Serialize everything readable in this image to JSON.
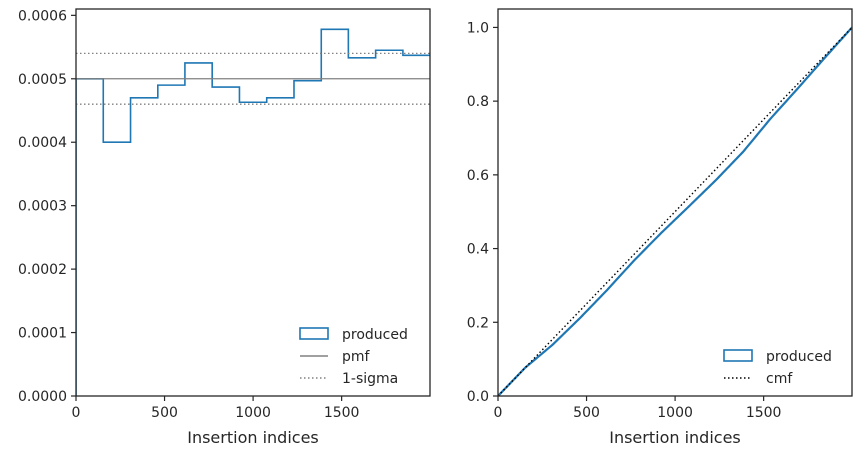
{
  "chart_data": [
    {
      "type": "line",
      "xlabel": "Insertion indices",
      "ylabel": "",
      "xlim": [
        0,
        1999
      ],
      "ylim": [
        0,
        0.00061
      ],
      "xticks": [
        0,
        500,
        1000,
        1500
      ],
      "xtick_labels": [
        "0",
        "500",
        "1000",
        "1500"
      ],
      "yticks": [
        0,
        0.0001,
        0.0002,
        0.0003,
        0.0004,
        0.0005,
        0.0006
      ],
      "ytick_labels": [
        "0.0000",
        "0.0001",
        "0.0002",
        "0.0003",
        "0.0004",
        "0.0005",
        "0.0006"
      ],
      "legend_position": "bottom-right",
      "series": [
        {
          "name": "produced",
          "style": "step",
          "color": "#1f77b4",
          "bin_edges": [
            0,
            154,
            308,
            462,
            615,
            769,
            923,
            1077,
            1231,
            1385,
            1538,
            1692,
            1846,
            1999
          ],
          "values": [
            0.0005,
            0.0004,
            0.00047,
            0.00049,
            0.000525,
            0.000487,
            0.000463,
            0.00047,
            0.000497,
            0.000578,
            0.000533,
            0.000545,
            0.000537
          ]
        },
        {
          "name": "pmf",
          "style": "solid",
          "color": "#808080",
          "y": 0.0005
        },
        {
          "name": "1-sigma",
          "style": "dotted",
          "color": "#808080",
          "y": [
            0.00046,
            0.00054
          ]
        }
      ]
    },
    {
      "type": "line",
      "xlabel": "Insertion indices",
      "ylabel": "",
      "xlim": [
        0,
        1999
      ],
      "ylim": [
        0,
        1.05
      ],
      "xticks": [
        0,
        500,
        1000,
        1500
      ],
      "xtick_labels": [
        "0",
        "500",
        "1000",
        "1500"
      ],
      "yticks": [
        0,
        0.2,
        0.4,
        0.6,
        0.8,
        1.0
      ],
      "ytick_labels": [
        "0.0",
        "0.2",
        "0.4",
        "0.6",
        "0.8",
        "1.0"
      ],
      "legend_position": "bottom-right",
      "series": [
        {
          "name": "produced",
          "style": "step",
          "color": "#1f77b4",
          "x": [
            0,
            154,
            308,
            462,
            615,
            769,
            923,
            1077,
            1231,
            1385,
            1538,
            1692,
            1846,
            1999
          ],
          "y": [
            0,
            0.077,
            0.139,
            0.211,
            0.287,
            0.368,
            0.443,
            0.514,
            0.586,
            0.663,
            0.752,
            0.834,
            0.918,
            1.0
          ]
        },
        {
          "name": "cmf",
          "style": "dotted",
          "color": "#000000",
          "x": [
            0,
            1999
          ],
          "y": [
            0,
            1.0
          ]
        }
      ]
    }
  ]
}
